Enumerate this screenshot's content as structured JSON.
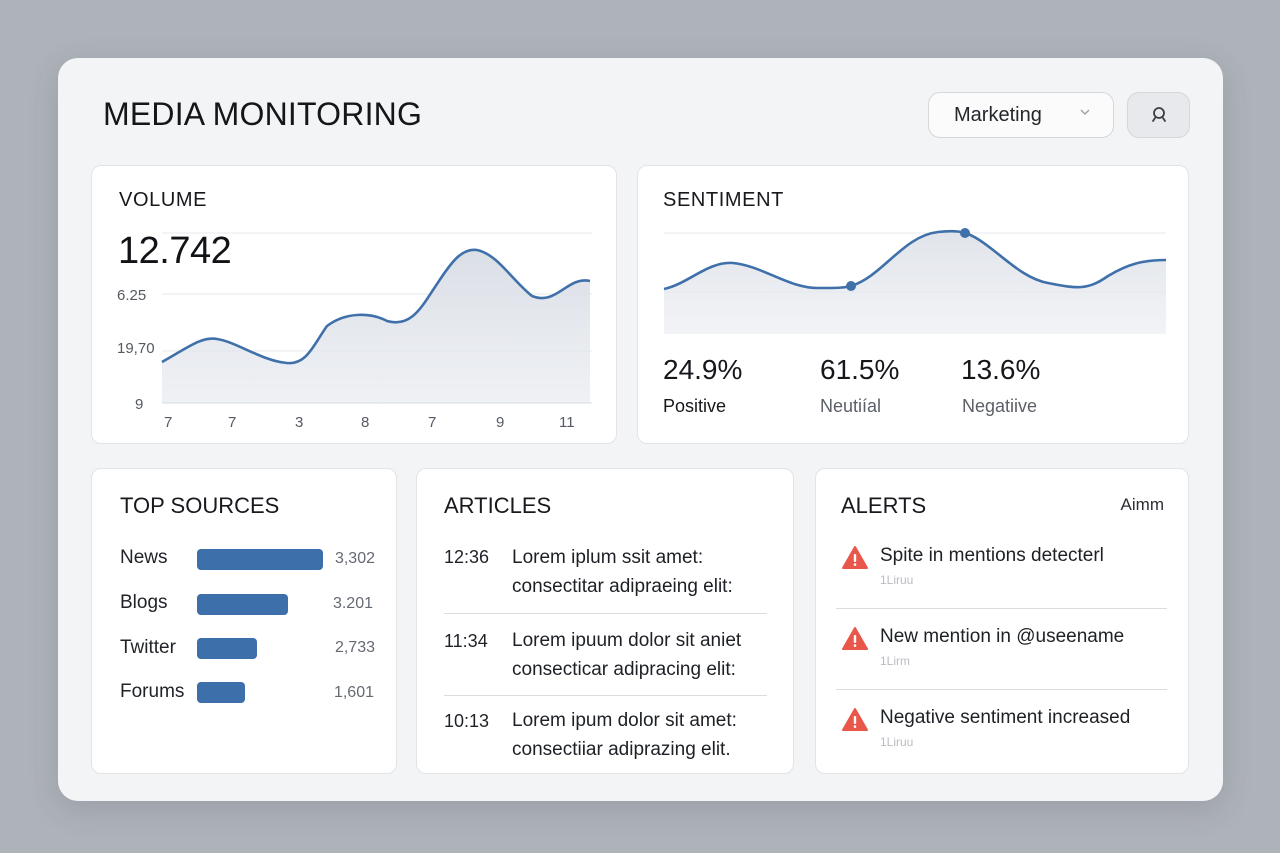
{
  "header": {
    "title": "MEDIA MONITORING",
    "filter_value": "Marketing",
    "filter_icon": "chevron-down-icon",
    "search_icon": "search-icon"
  },
  "volume": {
    "title": "VOLUME",
    "total": "12.742",
    "y_labels": [
      "6.25",
      "19,70",
      "9"
    ],
    "x_labels": [
      "7",
      "7",
      "3",
      "8",
      "7",
      "9",
      "11"
    ]
  },
  "sentiment": {
    "title": "SENTIMENT",
    "stats": [
      {
        "value": "24.9%",
        "label": "Positive",
        "color": "#15171b"
      },
      {
        "value": "61.5%",
        "label": "Neutiíal",
        "color": "#5b6068"
      },
      {
        "value": "13.6%",
        "label": "Negatiive",
        "color": "#5b6068"
      }
    ]
  },
  "sources": {
    "title": "TOP SOURCES",
    "items": [
      {
        "name": "News",
        "value": "3,302",
        "share": 1.0
      },
      {
        "name": "Blogs",
        "value": "3.201",
        "share": 0.72
      },
      {
        "name": "Twitter",
        "value": "2,733",
        "share": 0.48
      },
      {
        "name": "Forums",
        "value": "1,601",
        "share": 0.38
      }
    ]
  },
  "articles": {
    "title": "ARTICLES",
    "items": [
      {
        "time": "12:36",
        "line1": "Lorem iplum ssit amet:",
        "line2": "consectitar adipraeing elit:"
      },
      {
        "time": "11:34",
        "line1": "Lorem ipuum dolor sit aniet",
        "line2": "consecticar adipracing elit:"
      },
      {
        "time": "10:13",
        "line1": "Lorem ipum dolor sit amet:",
        "line2": "consectiiar adiprazing elit."
      }
    ]
  },
  "alerts": {
    "title": "ALERTS",
    "link": "Aimm",
    "icon": "warning-icon",
    "accent": "#e8574a",
    "items": [
      {
        "text": "Spite in mentions detecterl",
        "time": "1Liruu"
      },
      {
        "text": "New mention in @useename",
        "time": "1Lirm"
      },
      {
        "text": "Negative sentiment increased",
        "time": "1Liruu"
      }
    ]
  }
}
